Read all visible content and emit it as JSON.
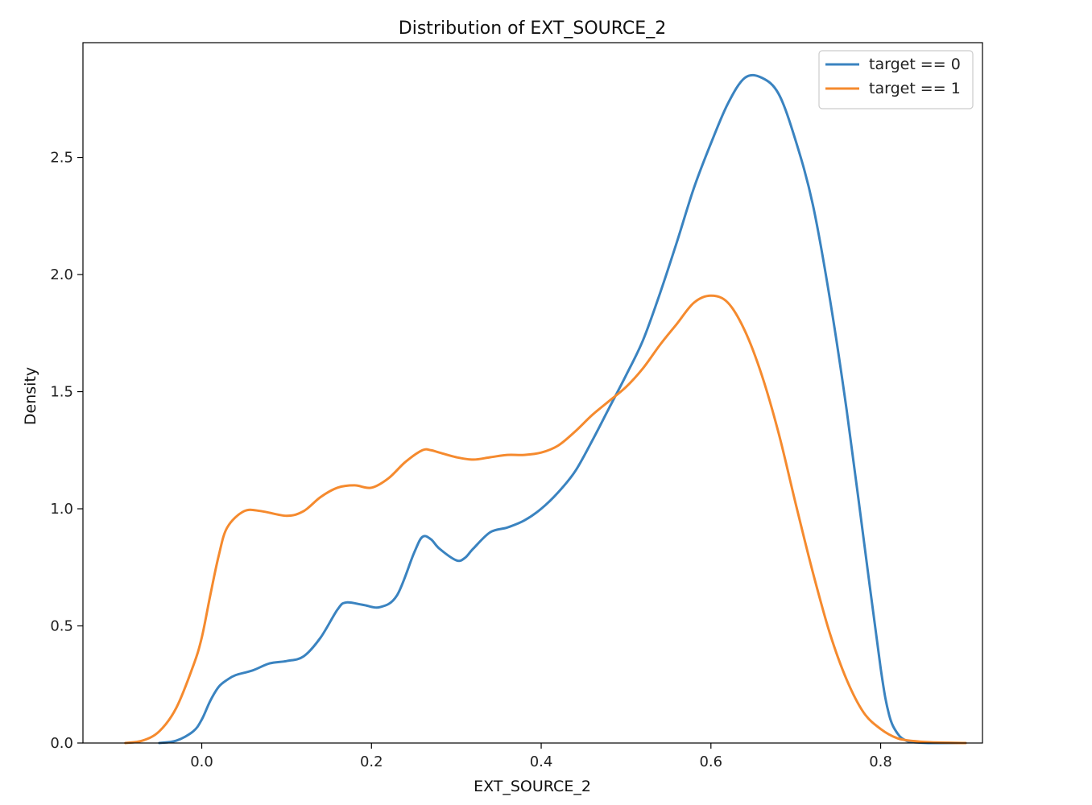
{
  "chart_data": {
    "type": "line",
    "title": "Distribution of EXT_SOURCE_2",
    "xlabel": "EXT_SOURCE_2",
    "ylabel": "Density",
    "xlim": [
      -0.14,
      0.92
    ],
    "ylim": [
      0.0,
      2.99
    ],
    "xticks": [
      "0.0",
      "0.2",
      "0.4",
      "0.6",
      "0.8"
    ],
    "xtick_values": [
      0.0,
      0.2,
      0.4,
      0.6,
      0.8
    ],
    "yticks": [
      "0.0",
      "0.5",
      "1.0",
      "1.5",
      "2.0",
      "2.5"
    ],
    "ytick_values": [
      0.0,
      0.5,
      1.0,
      1.5,
      2.0,
      2.5
    ],
    "grid": false,
    "legend_position": "top-right",
    "series": [
      {
        "name": "target == 0",
        "color": "#3a83c0",
        "x": [
          -0.05,
          -0.03,
          -0.01,
          0.0,
          0.01,
          0.02,
          0.03,
          0.04,
          0.06,
          0.08,
          0.1,
          0.12,
          0.14,
          0.16,
          0.17,
          0.19,
          0.21,
          0.23,
          0.25,
          0.26,
          0.27,
          0.28,
          0.3,
          0.31,
          0.32,
          0.34,
          0.36,
          0.38,
          0.4,
          0.42,
          0.44,
          0.46,
          0.48,
          0.5,
          0.52,
          0.54,
          0.56,
          0.58,
          0.6,
          0.62,
          0.64,
          0.66,
          0.68,
          0.7,
          0.72,
          0.74,
          0.76,
          0.78,
          0.8,
          0.81,
          0.82,
          0.83,
          0.84,
          0.86,
          0.9
        ],
        "y": [
          0.0,
          0.01,
          0.05,
          0.1,
          0.18,
          0.24,
          0.27,
          0.29,
          0.31,
          0.34,
          0.35,
          0.37,
          0.45,
          0.57,
          0.6,
          0.59,
          0.58,
          0.63,
          0.81,
          0.88,
          0.87,
          0.83,
          0.78,
          0.79,
          0.83,
          0.9,
          0.92,
          0.95,
          1.0,
          1.07,
          1.16,
          1.29,
          1.43,
          1.57,
          1.72,
          1.92,
          2.14,
          2.37,
          2.56,
          2.73,
          2.84,
          2.84,
          2.77,
          2.57,
          2.3,
          1.9,
          1.42,
          0.87,
          0.32,
          0.12,
          0.04,
          0.01,
          0.003,
          0.0,
          0.0
        ]
      },
      {
        "name": "target == 1",
        "color": "#f58a2e",
        "x": [
          -0.09,
          -0.07,
          -0.05,
          -0.03,
          -0.01,
          0.0,
          0.01,
          0.02,
          0.03,
          0.05,
          0.07,
          0.1,
          0.12,
          0.14,
          0.16,
          0.18,
          0.2,
          0.22,
          0.24,
          0.26,
          0.27,
          0.28,
          0.3,
          0.32,
          0.34,
          0.36,
          0.38,
          0.4,
          0.42,
          0.44,
          0.46,
          0.48,
          0.5,
          0.52,
          0.54,
          0.56,
          0.58,
          0.6,
          0.62,
          0.64,
          0.66,
          0.68,
          0.7,
          0.72,
          0.74,
          0.76,
          0.78,
          0.8,
          0.82,
          0.84,
          0.86,
          0.9
        ],
        "y": [
          0.0,
          0.01,
          0.05,
          0.15,
          0.33,
          0.45,
          0.63,
          0.8,
          0.92,
          0.99,
          0.99,
          0.97,
          0.99,
          1.05,
          1.09,
          1.1,
          1.09,
          1.13,
          1.2,
          1.25,
          1.25,
          1.24,
          1.22,
          1.21,
          1.22,
          1.23,
          1.23,
          1.24,
          1.27,
          1.33,
          1.4,
          1.46,
          1.52,
          1.6,
          1.7,
          1.79,
          1.88,
          1.91,
          1.88,
          1.76,
          1.57,
          1.32,
          1.02,
          0.73,
          0.47,
          0.27,
          0.13,
          0.06,
          0.02,
          0.008,
          0.003,
          0.0
        ]
      }
    ]
  }
}
